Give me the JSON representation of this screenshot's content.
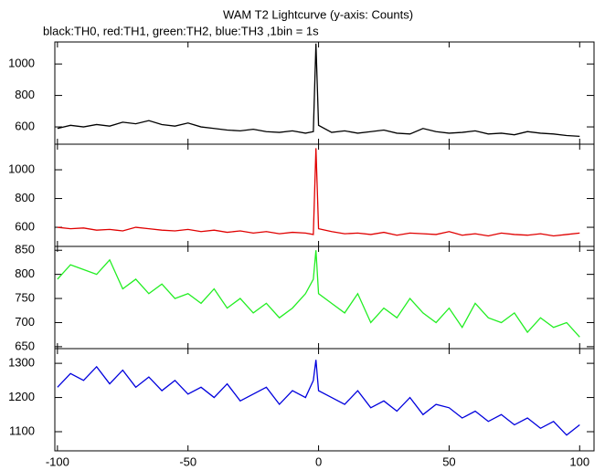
{
  "chart_data": [
    {
      "type": "line",
      "title": "WAM T2 Lightcurve (y-axis: Counts)",
      "subtitle": "black:TH0, red:TH1, green:TH2, blue:TH3 ,1bin = 1s",
      "x": [
        -100,
        -95,
        -90,
        -85,
        -80,
        -75,
        -70,
        -65,
        -60,
        -55,
        -50,
        -45,
        -40,
        -35,
        -30,
        -25,
        -20,
        -15,
        -10,
        -5,
        -2,
        -1,
        0,
        5,
        10,
        15,
        20,
        25,
        30,
        35,
        40,
        45,
        50,
        55,
        60,
        65,
        70,
        75,
        80,
        85,
        90,
        95,
        100
      ],
      "series": [
        {
          "name": "TH0",
          "color": "#000000",
          "values": [
            590,
            610,
            600,
            615,
            605,
            630,
            620,
            640,
            615,
            605,
            625,
            600,
            590,
            580,
            575,
            585,
            570,
            565,
            575,
            560,
            570,
            1130,
            610,
            565,
            575,
            560,
            570,
            580,
            560,
            555,
            590,
            570,
            560,
            565,
            575,
            555,
            560,
            550,
            570,
            560,
            555,
            545,
            540
          ]
        }
      ],
      "xlim": [
        -101,
        105.5
      ],
      "ylim": [
        490,
        1140
      ],
      "yticks": [
        600,
        800,
        1000
      ]
    },
    {
      "type": "line",
      "x": [
        -100,
        -95,
        -90,
        -85,
        -80,
        -75,
        -70,
        -65,
        -60,
        -55,
        -50,
        -45,
        -40,
        -35,
        -30,
        -25,
        -20,
        -15,
        -10,
        -5,
        -2,
        -1,
        0,
        5,
        10,
        15,
        20,
        25,
        30,
        35,
        40,
        45,
        50,
        55,
        60,
        65,
        70,
        75,
        80,
        85,
        90,
        95,
        100
      ],
      "series": [
        {
          "name": "TH1",
          "color": "#e00000",
          "values": [
            600,
            590,
            595,
            580,
            585,
            575,
            600,
            590,
            580,
            575,
            585,
            570,
            580,
            565,
            575,
            560,
            570,
            555,
            565,
            560,
            550,
            1150,
            590,
            570,
            555,
            560,
            550,
            565,
            545,
            560,
            555,
            550,
            570,
            545,
            555,
            540,
            560,
            550,
            545,
            555,
            540,
            550,
            560
          ]
        }
      ],
      "xlim": [
        -101,
        105.5
      ],
      "ylim": [
        467,
        1178
      ],
      "yticks": [
        600,
        800,
        1000
      ]
    },
    {
      "type": "line",
      "x": [
        -100,
        -95,
        -90,
        -85,
        -80,
        -75,
        -70,
        -65,
        -60,
        -55,
        -50,
        -45,
        -40,
        -35,
        -30,
        -25,
        -20,
        -15,
        -10,
        -5,
        -2,
        -1,
        0,
        5,
        10,
        15,
        20,
        25,
        30,
        35,
        40,
        45,
        50,
        55,
        60,
        65,
        70,
        75,
        80,
        85,
        90,
        95,
        100
      ],
      "series": [
        {
          "name": "TH2",
          "color": "#22ee22",
          "values": [
            790,
            820,
            810,
            800,
            830,
            770,
            790,
            760,
            780,
            750,
            760,
            740,
            770,
            730,
            750,
            720,
            740,
            710,
            730,
            760,
            790,
            850,
            760,
            740,
            720,
            760,
            700,
            730,
            710,
            750,
            720,
            700,
            730,
            690,
            740,
            710,
            700,
            720,
            680,
            710,
            690,
            700,
            670
          ]
        }
      ],
      "xlim": [
        -101,
        105.5
      ],
      "ylim": [
        646,
        858
      ],
      "yticks": [
        650,
        700,
        750,
        800,
        850
      ]
    },
    {
      "type": "line",
      "x": [
        -100,
        -95,
        -90,
        -85,
        -80,
        -75,
        -70,
        -65,
        -60,
        -55,
        -50,
        -45,
        -40,
        -35,
        -30,
        -25,
        -20,
        -15,
        -10,
        -5,
        -2,
        -1,
        0,
        5,
        10,
        15,
        20,
        25,
        30,
        35,
        40,
        45,
        50,
        55,
        60,
        65,
        70,
        75,
        80,
        85,
        90,
        95,
        100
      ],
      "series": [
        {
          "name": "TH3",
          "color": "#0000dd",
          "values": [
            1230,
            1270,
            1250,
            1290,
            1240,
            1280,
            1230,
            1260,
            1220,
            1250,
            1210,
            1230,
            1200,
            1240,
            1190,
            1210,
            1230,
            1180,
            1220,
            1200,
            1250,
            1310,
            1220,
            1200,
            1180,
            1220,
            1170,
            1190,
            1160,
            1200,
            1150,
            1180,
            1170,
            1140,
            1160,
            1130,
            1150,
            1120,
            1140,
            1110,
            1130,
            1090,
            1120
          ]
        }
      ],
      "xlim": [
        -101,
        105.5
      ],
      "ylim": [
        1044,
        1343
      ],
      "yticks": [
        1100,
        1200,
        1300
      ],
      "xticks": [
        -100,
        -50,
        0,
        50,
        100
      ]
    }
  ]
}
